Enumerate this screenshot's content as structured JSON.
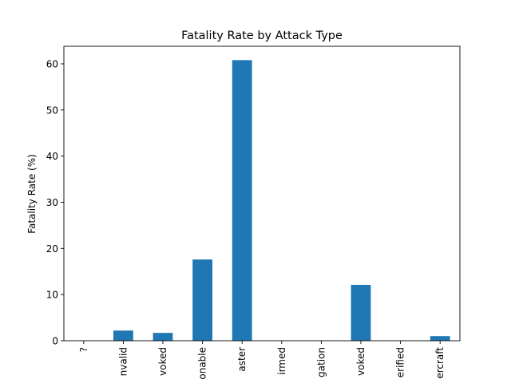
{
  "chart_data": {
    "type": "bar",
    "title": "Fatality Rate by Attack Type",
    "xlabel": "",
    "ylabel": "Fatality Rate (%)",
    "categories": [
      "?",
      "nvalid",
      "voked",
      "onable",
      "aster",
      "irmed",
      "gation",
      "voked",
      "erified",
      "ercraft"
    ],
    "values": [
      0,
      2.2,
      1.7,
      17.6,
      60.8,
      0,
      0,
      12.1,
      0,
      1.0
    ],
    "ylim": [
      0,
      63.8
    ],
    "yticks": [
      0,
      10,
      20,
      30,
      40,
      50,
      60
    ],
    "grid": false,
    "bar_color": "#1f77b4"
  }
}
